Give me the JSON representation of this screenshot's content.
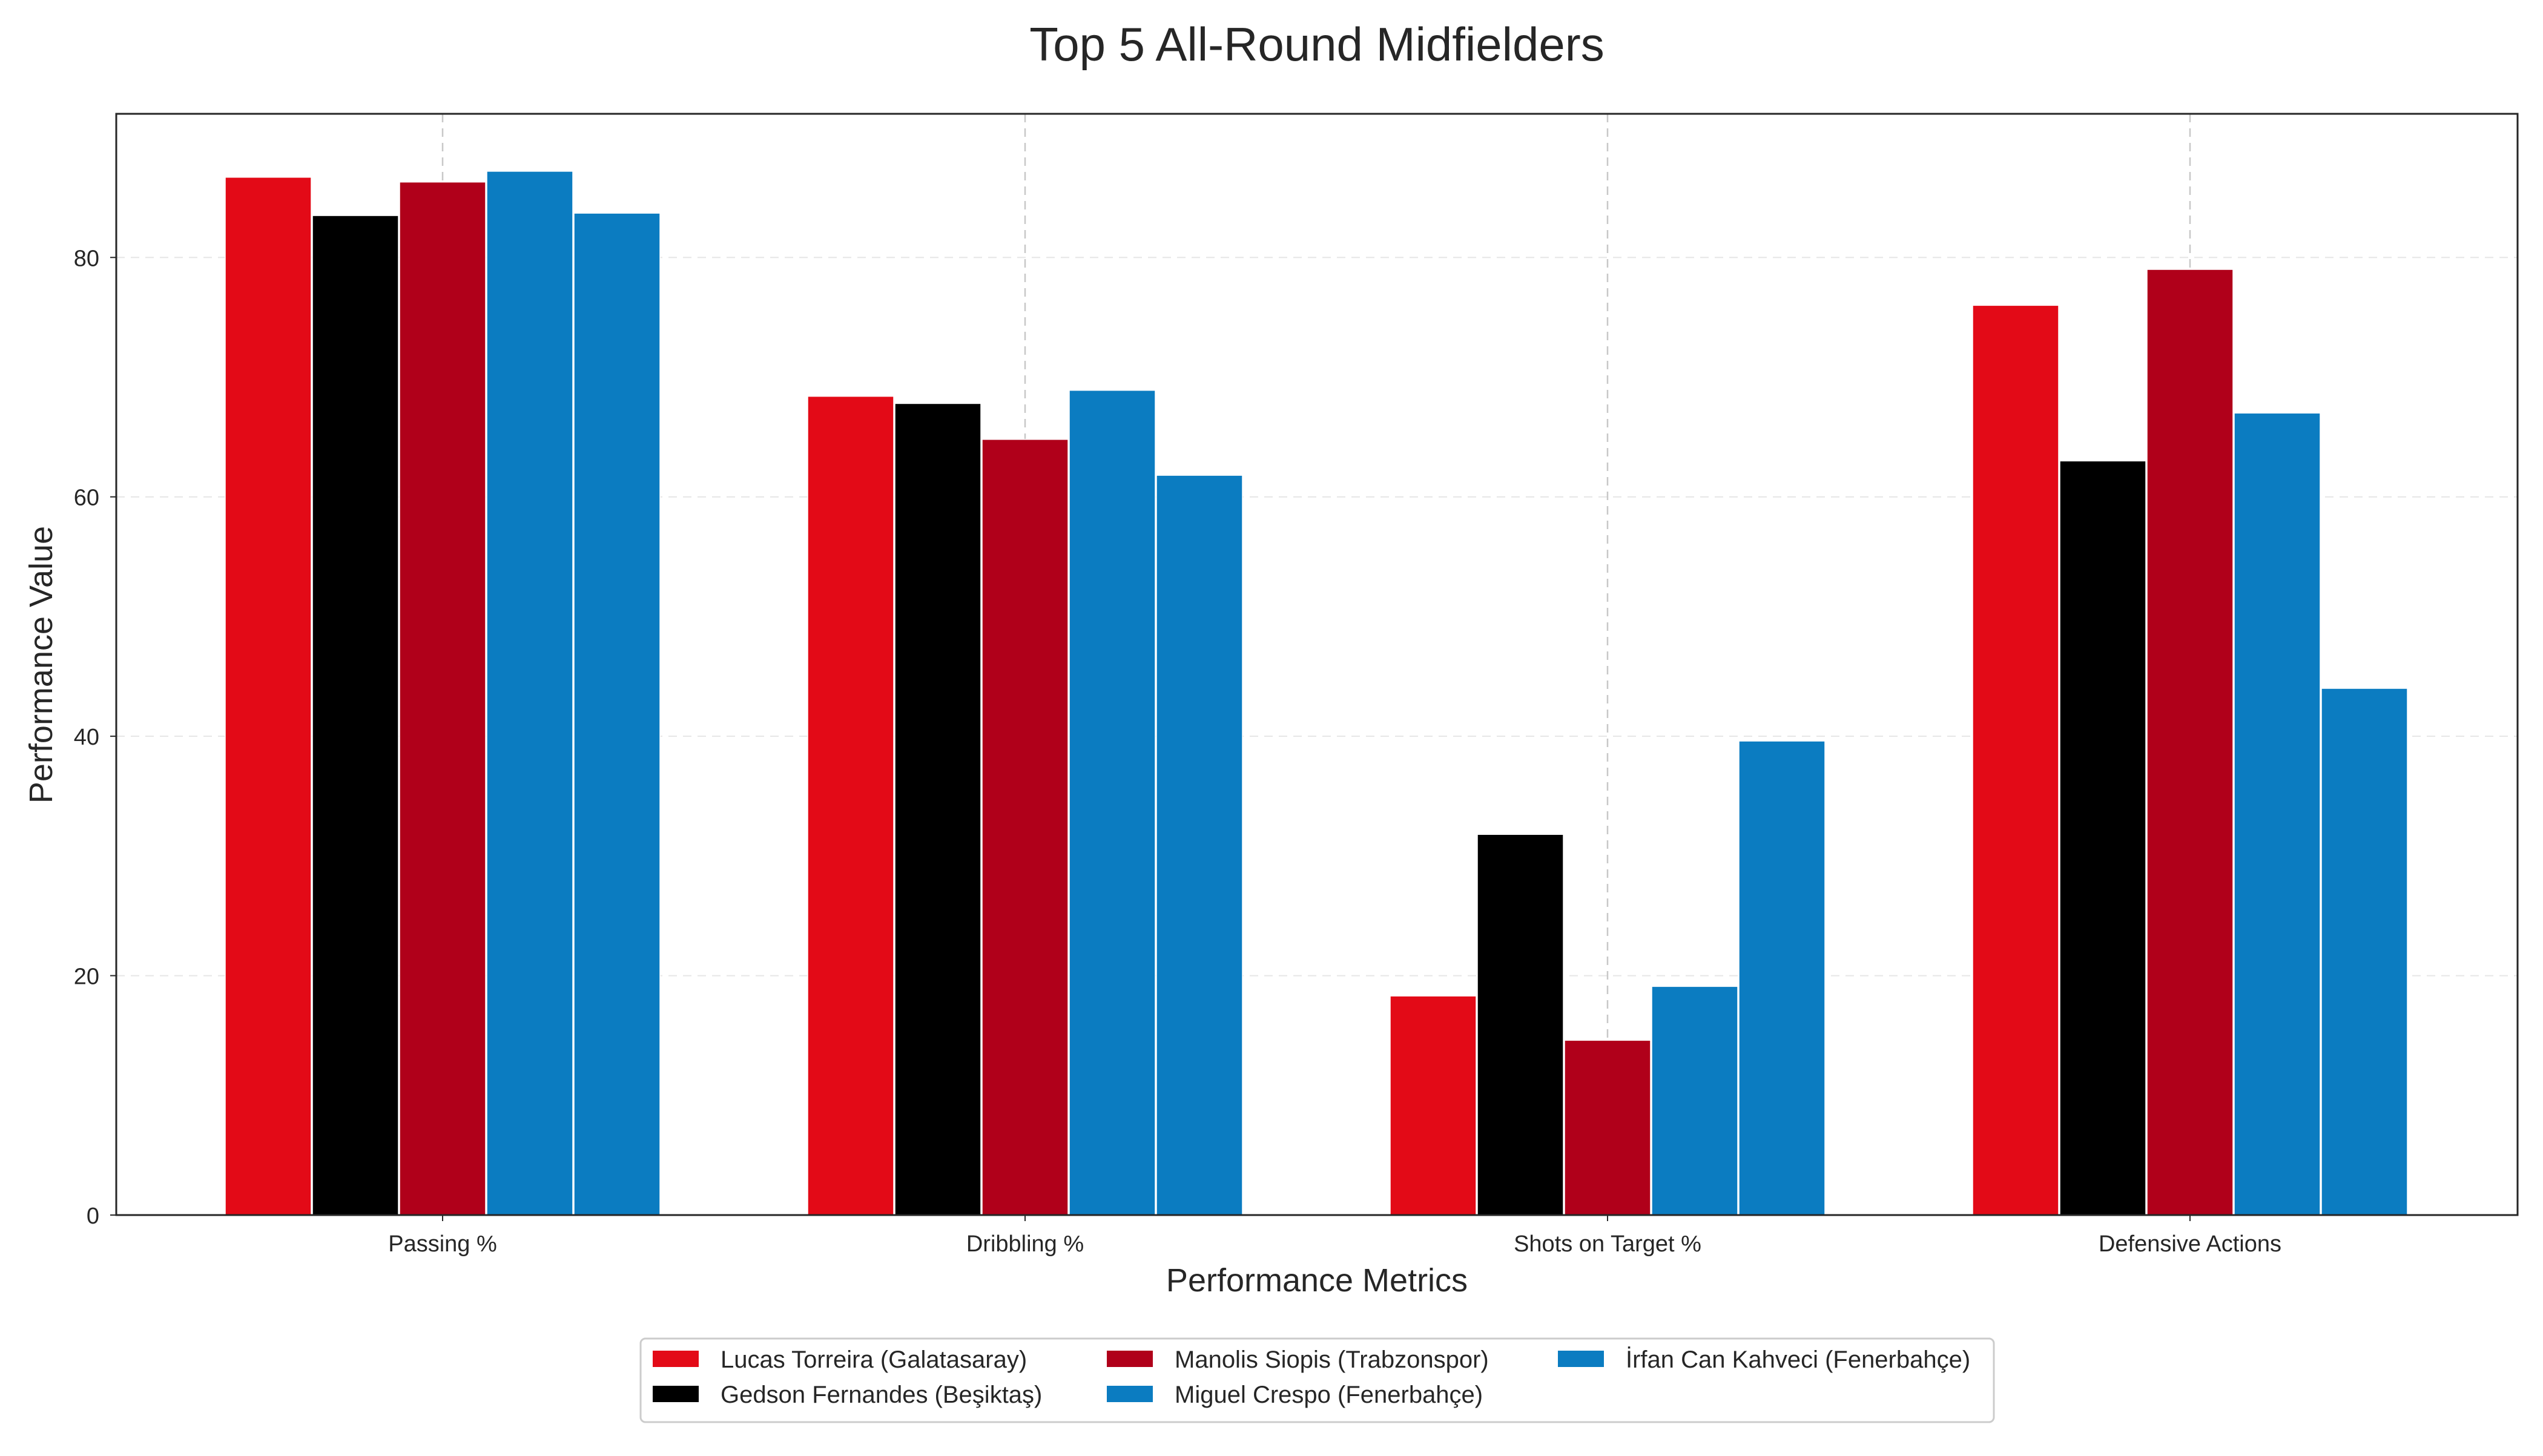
{
  "chart_data": {
    "type": "bar",
    "title": "Top 5 All-Round Midfielders",
    "xlabel": "Performance Metrics",
    "ylabel": "Performance Value",
    "categories": [
      "Passing %",
      "Dribbling %",
      "Shots on Target %",
      "Defensive Actions"
    ],
    "ylim": [
      0,
      92
    ],
    "yticks": [
      0,
      20,
      40,
      60,
      80
    ],
    "grid": true,
    "legend_position": "bottom-center",
    "series": [
      {
        "name": "Lucas Torreira (Galatasaray)",
        "color": "#e30a17",
        "values": [
          86.7,
          68.4,
          18.3,
          76.0
        ]
      },
      {
        "name": "Gedson Fernandes (Beşiktaş)",
        "color": "#000000",
        "values": [
          83.5,
          67.8,
          31.8,
          63.0
        ]
      },
      {
        "name": "Manolis Siopis (Trabzonspor)",
        "color": "#b0001a",
        "values": [
          86.3,
          64.8,
          14.6,
          79.0
        ]
      },
      {
        "name": "Miguel Crespo (Fenerbahçe)",
        "color": "#0b7cc1",
        "values": [
          87.2,
          68.9,
          19.1,
          67.0
        ]
      },
      {
        "name": "İrfan Can Kahveci (Fenerbahçe)",
        "color": "#0b7cc1",
        "values": [
          83.7,
          61.8,
          39.6,
          44.0
        ]
      }
    ]
  }
}
